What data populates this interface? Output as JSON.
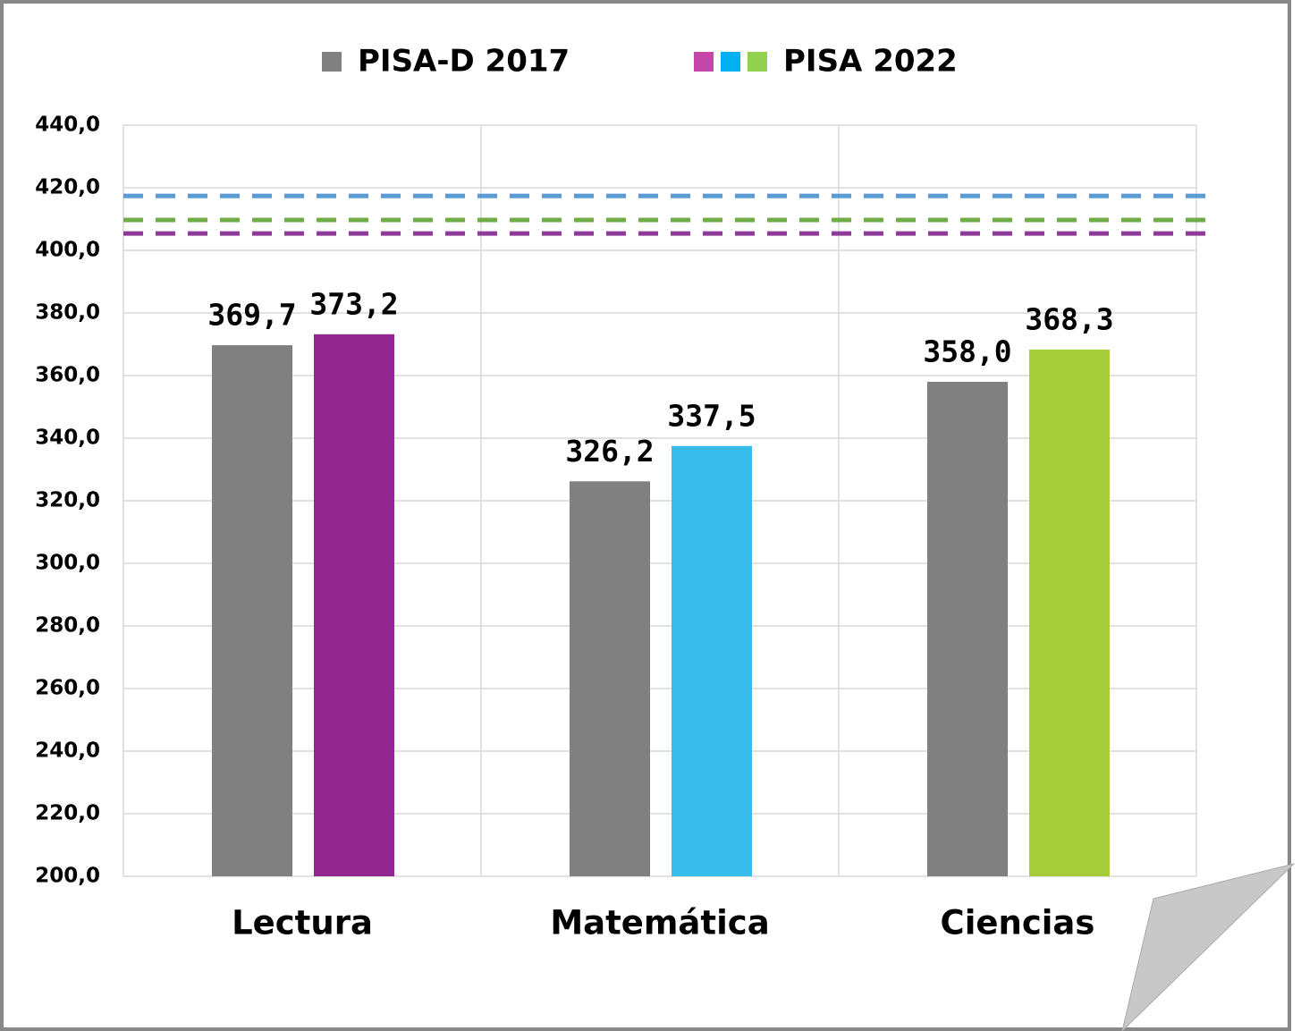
{
  "chart_data": {
    "type": "bar",
    "categories": [
      "Lectura",
      "Matemática",
      "Ciencias"
    ],
    "series": [
      {
        "name": "PISA-D 2017",
        "color": "#808080",
        "legend_colors": [
          "#808080"
        ],
        "values": [
          369.7,
          326.2,
          358.0
        ],
        "value_labels": [
          "369,7",
          "326,2",
          "358,0"
        ]
      },
      {
        "name": "PISA 2022",
        "color": [
          "#92278f",
          "#38bdec",
          "#a6ce39"
        ],
        "legend_colors": [
          "#c346a8",
          "#00b0f0",
          "#92d050"
        ],
        "values": [
          373.2,
          337.5,
          368.3
        ],
        "value_labels": [
          "373,2",
          "337,5",
          "368,3"
        ]
      }
    ],
    "reference_lines": [
      {
        "value": 417.4,
        "color": "#5b9bd5"
      },
      {
        "value": 409.7,
        "color": "#70ad47"
      },
      {
        "value": 405.4,
        "color": "#8e3a98"
      }
    ],
    "ylim": [
      200,
      440
    ],
    "yticks": [
      {
        "value": 200,
        "label": "200,0"
      },
      {
        "value": 220,
        "label": "220,0"
      },
      {
        "value": 240,
        "label": "240,0"
      },
      {
        "value": 260,
        "label": "260,0"
      },
      {
        "value": 280,
        "label": "280,0"
      },
      {
        "value": 300,
        "label": "300,0"
      },
      {
        "value": 320,
        "label": "320,0"
      },
      {
        "value": 340,
        "label": "340,0"
      },
      {
        "value": 360,
        "label": "360,0"
      },
      {
        "value": 380,
        "label": "380,0"
      },
      {
        "value": 400,
        "label": "400,0"
      },
      {
        "value": 420,
        "label": "420,0"
      },
      {
        "value": 440,
        "label": "440,0"
      }
    ],
    "grid": true,
    "legend": "top"
  }
}
